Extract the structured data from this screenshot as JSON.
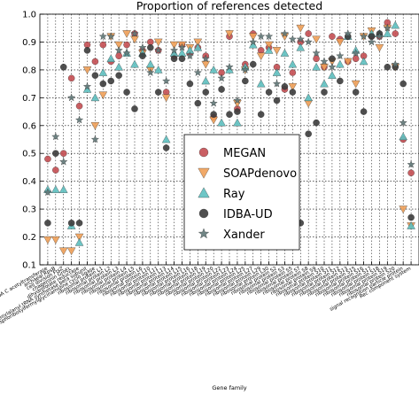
{
  "chart_data": {
    "type": "scatter",
    "title": "Proportion of references detected",
    "xlabel": "Gene family",
    "ylabel": "",
    "ylim": [
      0.1,
      1.0
    ],
    "yticks": [
      "0.1",
      "0.2",
      "0.3",
      "0.4",
      "0.5",
      "0.6",
      "0.7",
      "0.8",
      "0.9",
      "1.0"
    ],
    "grid": true,
    "legend_position": "lower-right",
    "categories": [
      "acetyl CoA C acetyltransferase",
      "archaeal RpsB",
      "cell division FtsZ",
      "chaperonin GroEL",
      "dihydrofolate reductase",
      "phenylalanyl tRNA synthetase beta subunit",
      "phosphoribosylformylglycinamidine cyclo ligase",
      "ribosomal protein L1",
      "ribosomal protein L2",
      "ribosomal protein L3",
      "ribosomal protein L4",
      "ribosomal protein L5",
      "ribosomal protein L6",
      "ribosomal protein L10",
      "ribosomal protein L11",
      "ribosomal protein L13",
      "ribosomal protein L14",
      "ribosomal protein L15",
      "ribosomal protein L16",
      "ribosomal protein L18",
      "ribosomal protein L19",
      "ribosomal protein L20",
      "ribosomal protein L22",
      "ribosomal protein L23",
      "ribosomal protein L24",
      "ribosomal protein L25",
      "ribosomal protein L27",
      "ribosomal protein L29",
      "ribosomal protein L30",
      "ribosomal protein S2",
      "ribosomal protein S3",
      "ribosomal protein S5",
      "ribosomal protein S7",
      "ribosomal protein S8",
      "ribosomal protein S9",
      "ribosomal protein S10",
      "ribosomal protein S11",
      "ribosomal protein S12",
      "ribosomal protein S13",
      "ribosomal protein S15",
      "ribosomal protein S16",
      "ribosomal protein S17",
      "ribosomal protein S18",
      "ribosomal protein S19",
      "ribosomal protein S20",
      "signal recognition particle protein",
      "Rec component system"
    ],
    "series": [
      {
        "name": "MEGAN",
        "color": "#c44e52",
        "marker": "circle",
        "values": [
          0.48,
          0.44,
          0.5,
          0.77,
          0.67,
          0.89,
          0.83,
          0.89,
          0.83,
          0.85,
          0.89,
          0.93,
          0.87,
          0.9,
          0.87,
          0.72,
          0.85,
          0.89,
          0.86,
          0.88,
          0.85,
          0.63,
          0.79,
          0.92,
          0.66,
          0.82,
          0.93,
          0.87,
          0.88,
          0.81,
          0.73,
          0.79,
          0.9,
          0.93,
          0.84,
          0.81,
          0.92,
          0.91,
          0.83,
          0.84,
          0.85,
          0.92,
          0.92,
          0.97,
          0.93,
          0.55,
          0.43
        ]
      },
      {
        "name": "SOAPdenovo",
        "color": "#f0a058",
        "marker": "triangle-down",
        "values": [
          0.19,
          0.19,
          0.15,
          0.15,
          0.2,
          0.8,
          0.6,
          0.71,
          0.92,
          0.89,
          0.93,
          0.91,
          0.86,
          0.8,
          0.9,
          0.7,
          0.89,
          0.89,
          0.88,
          0.9,
          0.82,
          0.62,
          0.52,
          0.93,
          0.68,
          0.8,
          0.92,
          0.85,
          0.89,
          0.87,
          0.92,
          0.74,
          0.95,
          0.68,
          0.91,
          0.81,
          0.83,
          0.9,
          0.83,
          0.75,
          0.92,
          0.94,
          0.88,
          0.95,
          0.81,
          0.3,
          0.24
        ]
      },
      {
        "name": "Ray",
        "color": "#5ec0c0",
        "marker": "triangle-up",
        "values": [
          0.37,
          0.37,
          0.37,
          0.24,
          0.18,
          0.73,
          0.7,
          0.79,
          0.84,
          0.81,
          0.86,
          0.82,
          0.86,
          0.82,
          0.8,
          0.55,
          0.86,
          0.86,
          0.87,
          0.88,
          0.76,
          0.8,
          0.61,
          0.8,
          0.61,
          0.81,
          0.89,
          0.75,
          0.87,
          0.79,
          0.86,
          0.82,
          0.88,
          0.7,
          0.81,
          0.75,
          0.78,
          0.82,
          0.92,
          0.87,
          0.83,
          0.93,
          0.93,
          0.93,
          0.96,
          0.56,
          0.24
        ]
      },
      {
        "name": "IDBA-UD",
        "color": "#3c3c3c",
        "marker": "circle",
        "values": [
          0.25,
          0.5,
          0.81,
          0.25,
          0.25,
          0.87,
          0.78,
          0.75,
          0.76,
          0.78,
          0.72,
          0.66,
          0.85,
          0.88,
          0.72,
          0.52,
          0.84,
          0.84,
          0.75,
          0.68,
          0.72,
          0.64,
          0.73,
          0.64,
          0.65,
          0.76,
          0.82,
          0.64,
          0.72,
          0.69,
          0.74,
          0.72,
          0.25,
          0.57,
          0.61,
          0.72,
          0.84,
          0.76,
          0.92,
          0.72,
          0.65,
          0.92,
          0.93,
          0.81,
          0.81,
          0.75,
          0.27
        ]
      },
      {
        "name": "Xander",
        "color": "#607878",
        "marker": "star",
        "values": [
          0.36,
          0.56,
          0.47,
          0.7,
          0.62,
          0.74,
          0.55,
          0.92,
          0.92,
          0.87,
          0.86,
          0.93,
          0.88,
          0.79,
          0.87,
          0.76,
          0.87,
          0.88,
          0.85,
          0.79,
          0.84,
          0.68,
          0.77,
          0.81,
          0.69,
          0.8,
          0.9,
          0.92,
          0.92,
          0.75,
          0.93,
          0.91,
          0.91,
          0.9,
          0.86,
          0.83,
          0.81,
          0.85,
          0.93,
          0.86,
          0.92,
          0.9,
          0.92,
          0.95,
          0.82,
          0.61,
          0.46
        ]
      }
    ]
  }
}
